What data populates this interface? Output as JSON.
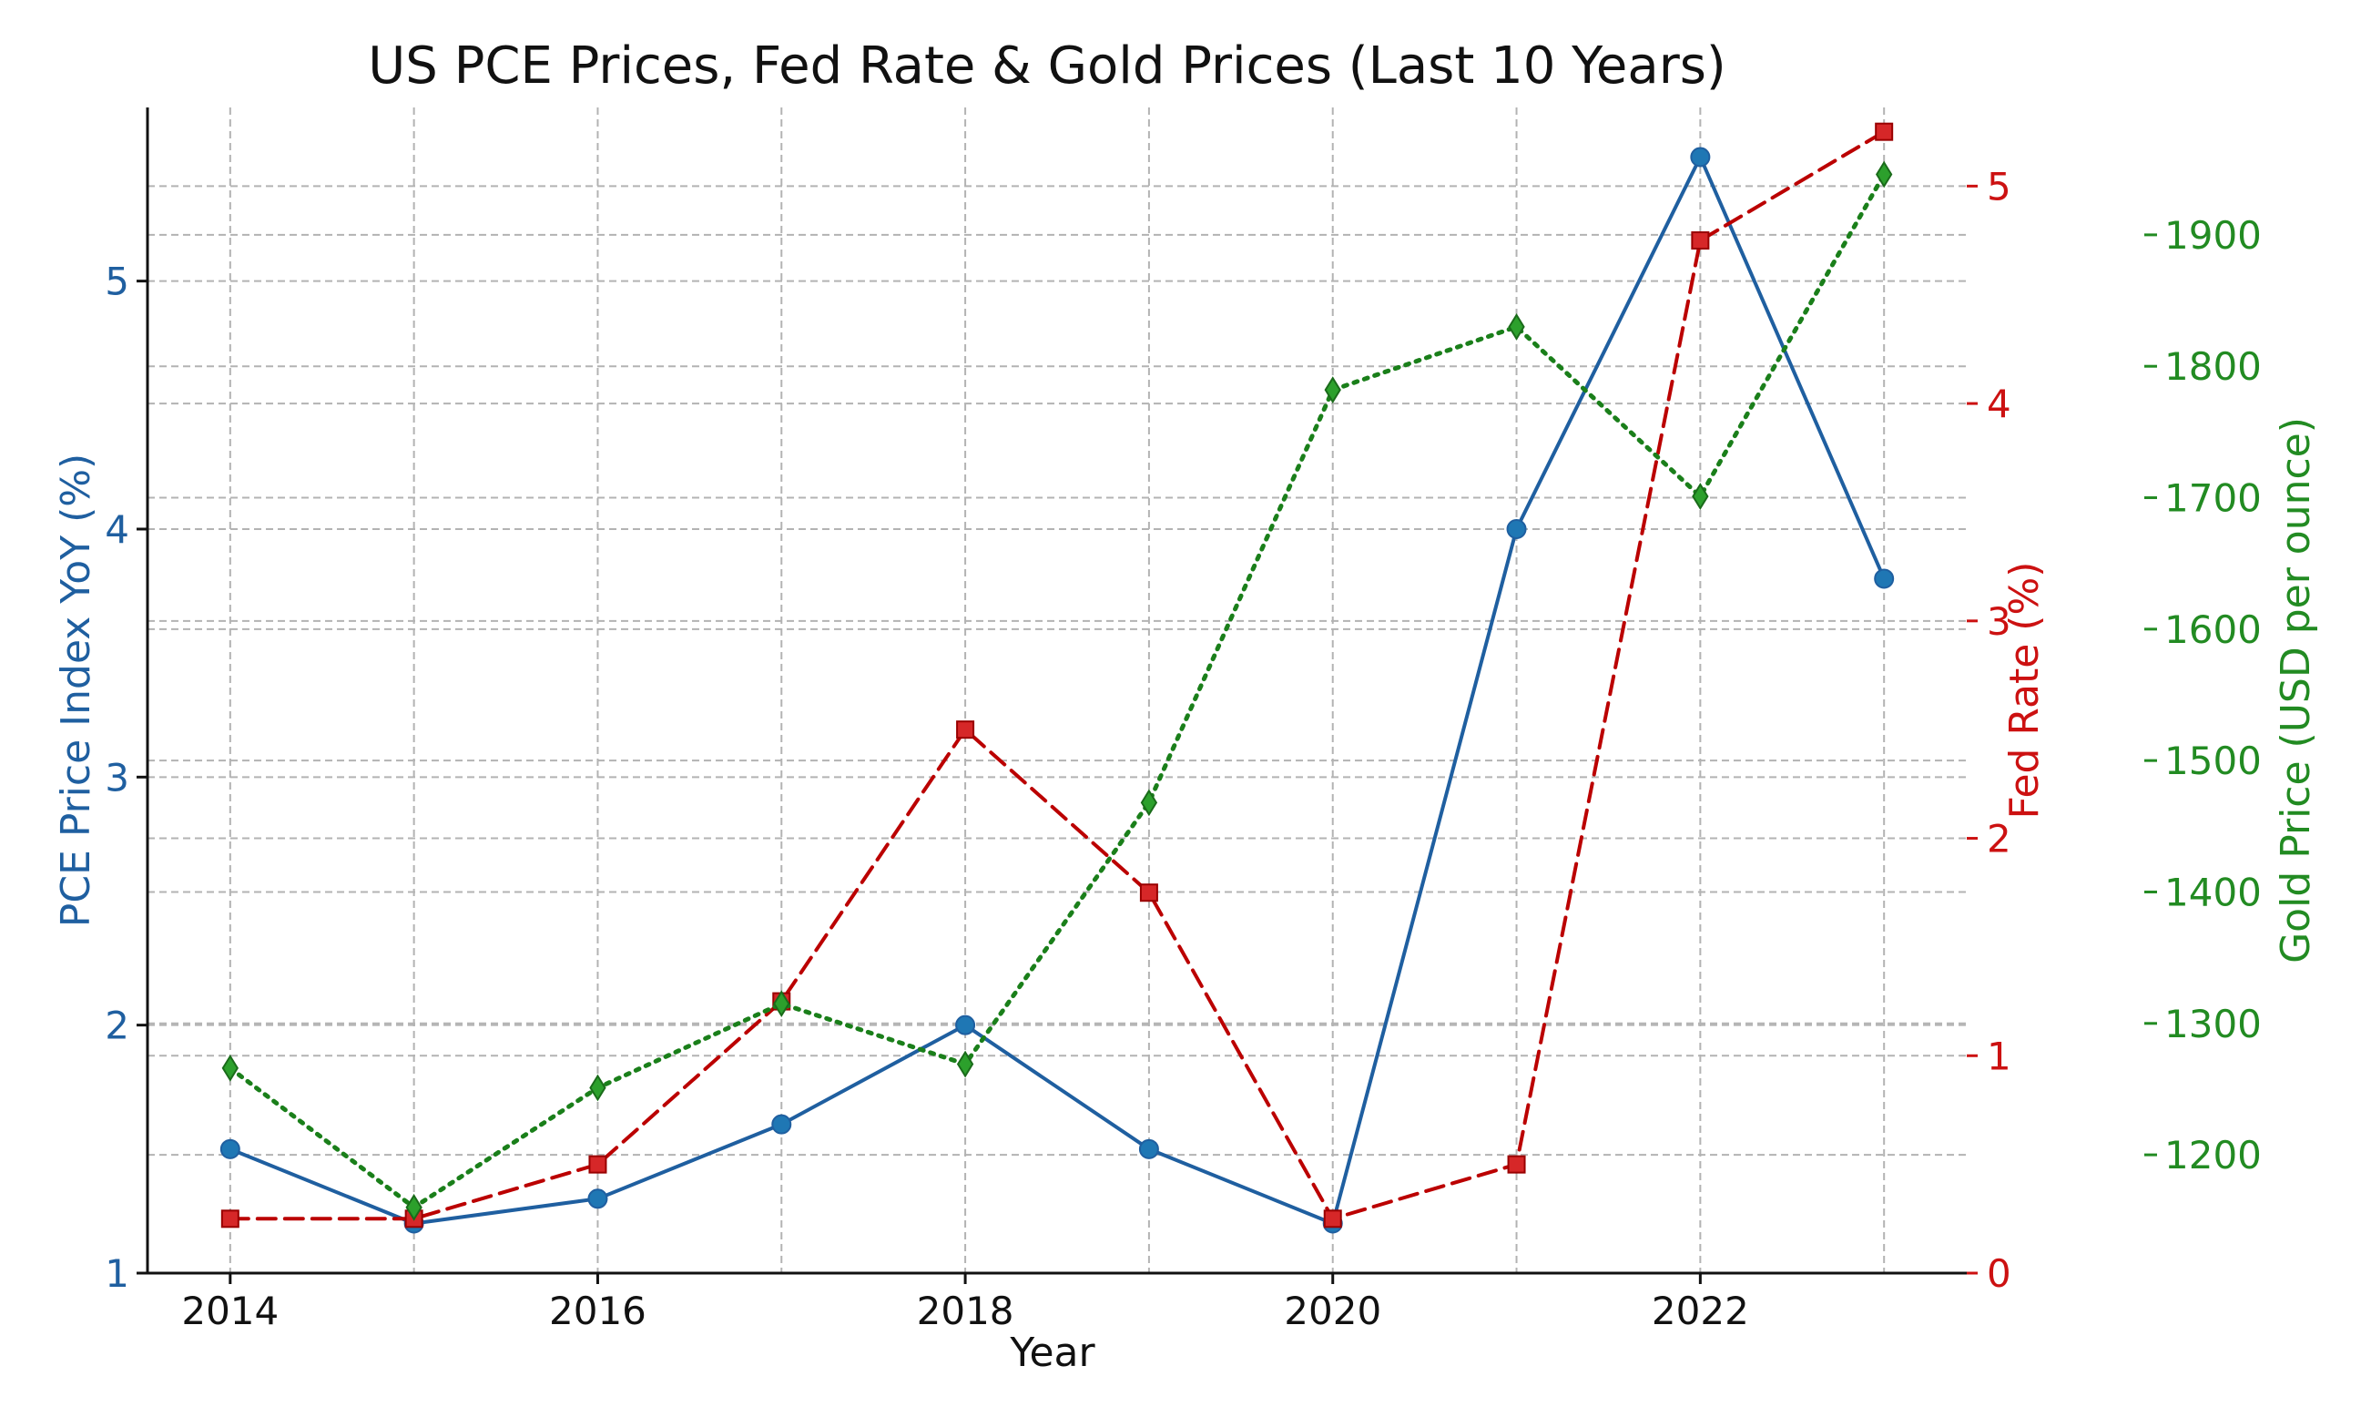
{
  "chart_data": {
    "type": "line",
    "title": "US PCE Prices, Fed Rate & Gold Prices (Last 10 Years)",
    "xlabel": "Year",
    "x": [
      2014,
      2015,
      2016,
      2017,
      2018,
      2019,
      2020,
      2021,
      2022,
      2023
    ],
    "xticks": [
      "2014",
      "2016",
      "2018",
      "2020",
      "2022"
    ],
    "xlim": [
      2013.55,
      2023.45
    ],
    "grid": true,
    "axes": {
      "pce": {
        "label": "PCE Price Index YoY (%)",
        "ylim": [
          1.0,
          5.7
        ],
        "ticks": [
          "1",
          "2",
          "3",
          "4",
          "5"
        ],
        "color": "#1f5fa0"
      },
      "fed": {
        "label": "Fed Rate (%)",
        "ylim": [
          0,
          5.5
        ],
        "ticks": [
          "0",
          "1",
          "2",
          "3",
          "4",
          "5"
        ],
        "color": "#cc1111"
      },
      "gold": {
        "label": "Gold Price (USD per ounce)",
        "ylim": [
          1110,
          1990
        ],
        "ticks": [
          "1200",
          "1300",
          "1400",
          "1500",
          "1600",
          "1700",
          "1800",
          "1900"
        ],
        "color": "#228b22"
      }
    },
    "series": [
      {
        "key": "pce",
        "axis": "pce",
        "style": "solid",
        "marker": "circle",
        "color": "#1f77b4",
        "line_color": "#1f5fa0",
        "values": [
          1.5,
          1.2,
          1.3,
          1.6,
          2.0,
          1.5,
          1.2,
          4.0,
          5.5,
          3.8
        ]
      },
      {
        "key": "fed",
        "axis": "fed",
        "style": "dashed",
        "marker": "square",
        "color": "#d62728",
        "line_color": "#bb0000",
        "values": [
          0.25,
          0.25,
          0.5,
          1.25,
          2.5,
          1.75,
          0.25,
          0.5,
          4.75,
          5.25
        ]
      },
      {
        "key": "gold",
        "axis": "gold",
        "style": "dotted",
        "marker": "diamond",
        "color": "#2ca02c",
        "line_color": "#1a7f1a",
        "values": [
          1266,
          1160,
          1251,
          1315,
          1269,
          1468,
          1782,
          1830,
          1701,
          1946
        ]
      }
    ]
  }
}
